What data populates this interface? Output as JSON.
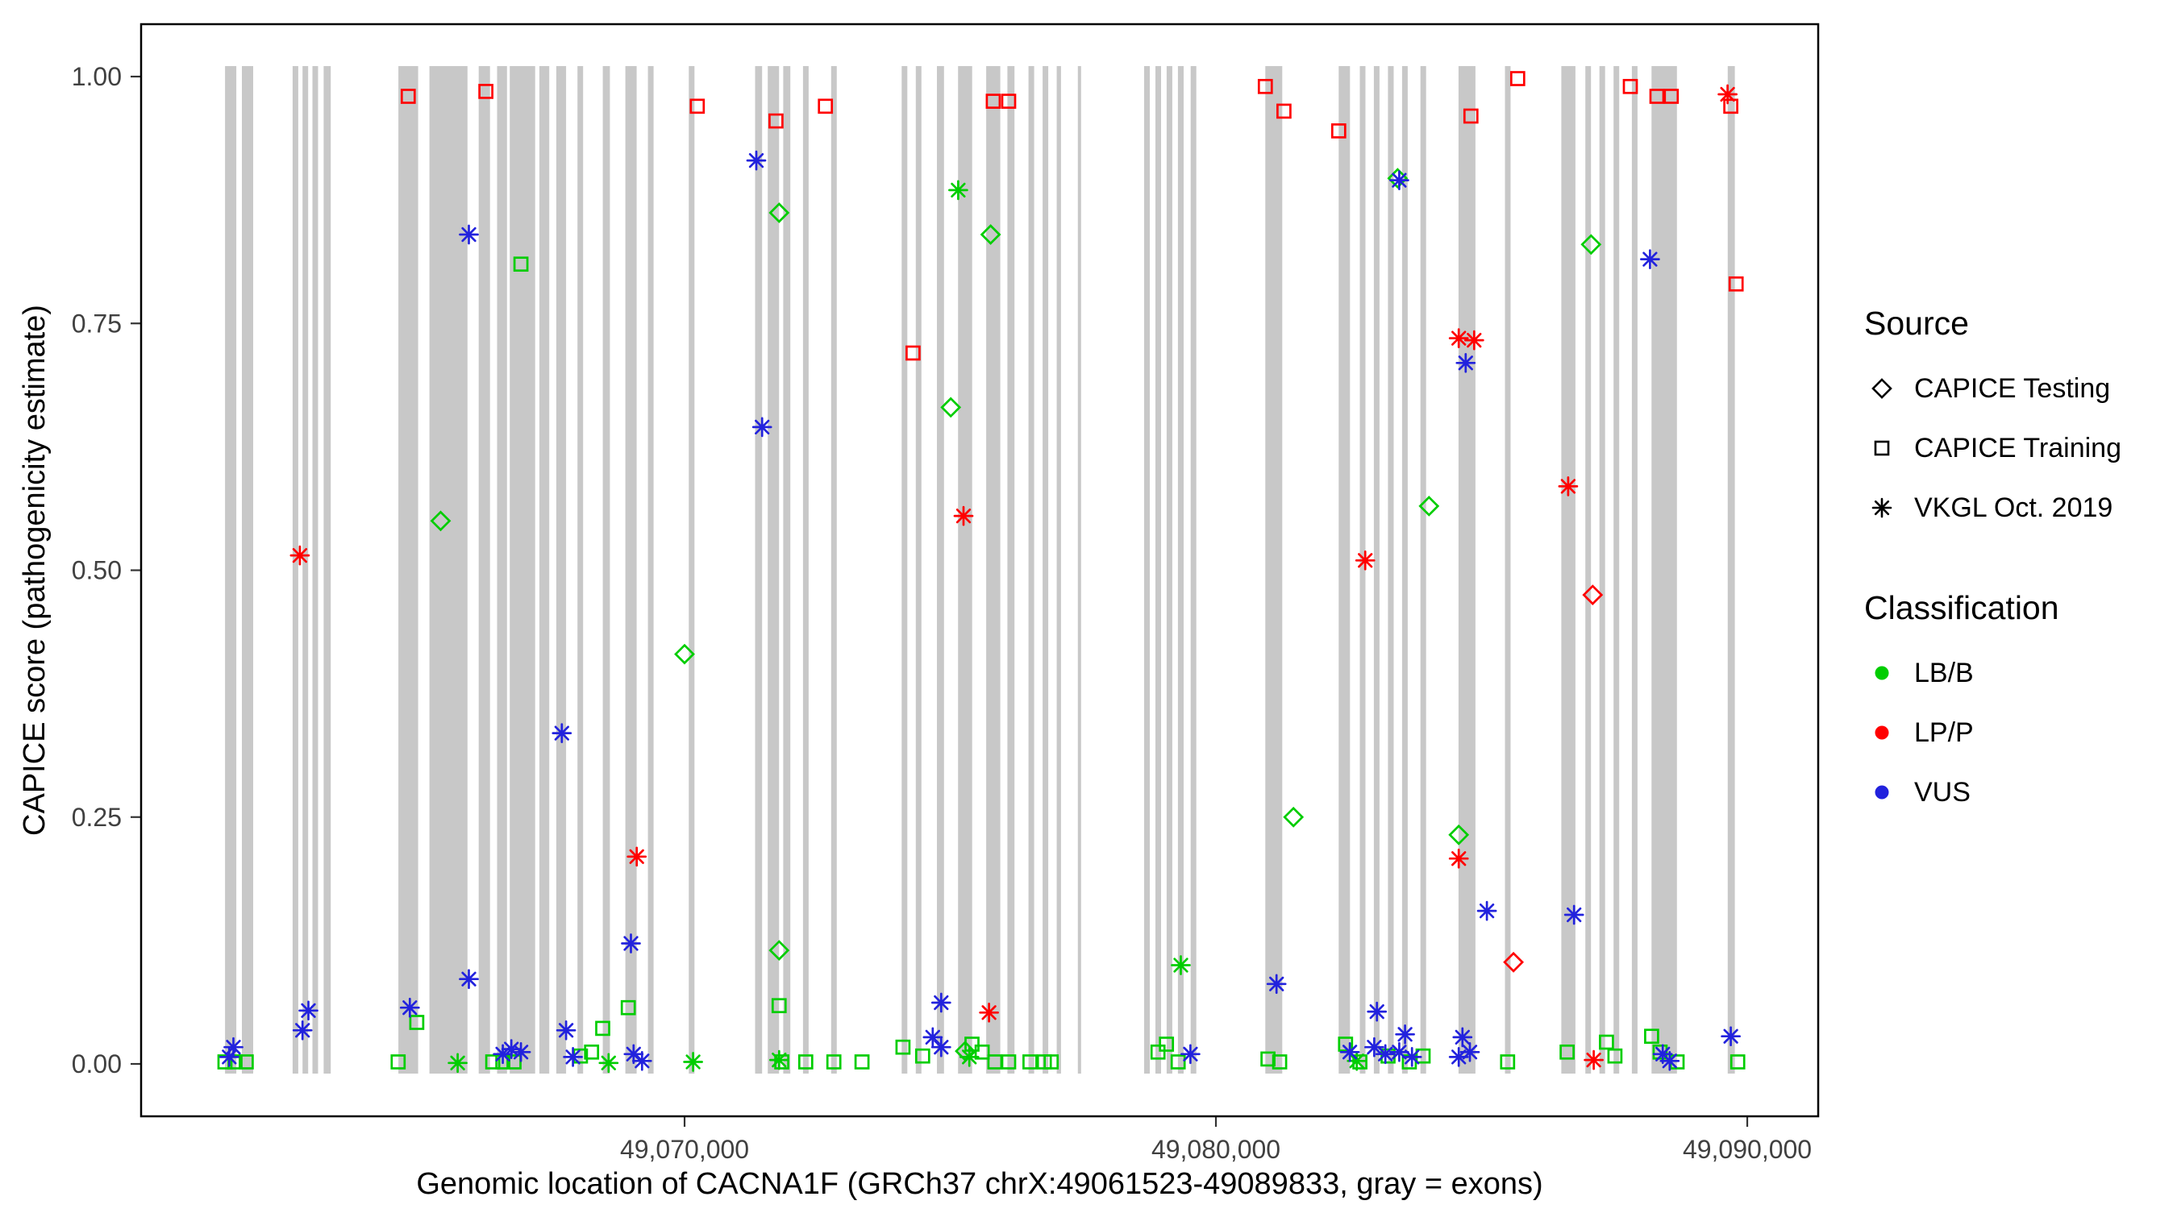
{
  "figure": {
    "x_axis": {
      "label": "Genomic location of CACNA1F (GRCh37 chrX:49061523-49089833, gray = exons)",
      "ticks": [
        "49,070,000",
        "49,080,000",
        "49,090,000"
      ],
      "tick_values": [
        49070000,
        49080000,
        49090000
      ]
    },
    "y_axis": {
      "label": "CAPICE score (pathogenicity estimate)",
      "ticks": [
        "0.00",
        "0.25",
        "0.50",
        "0.75",
        "1.00"
      ],
      "tick_values": [
        0,
        0.25,
        0.5,
        0.75,
        1
      ]
    },
    "legend": {
      "source": {
        "title": "Source",
        "items": [
          {
            "shape": "diamond",
            "label": "CAPICE Testing"
          },
          {
            "shape": "square",
            "label": "CAPICE Training"
          },
          {
            "shape": "asterisk",
            "label": "VKGL Oct. 2019"
          }
        ]
      },
      "classification": {
        "title": "Classification",
        "items": [
          {
            "color": "#00CD00",
            "label": "LB/B"
          },
          {
            "color": "#FF0000",
            "label": "LP/P"
          },
          {
            "color": "#2222DD",
            "label": "VUS"
          }
        ]
      }
    }
  },
  "chart_data": {
    "type": "scatter",
    "title": "",
    "xlabel": "Genomic location of CACNA1F (GRCh37 chrX:49061523-49089833, gray = exons)",
    "ylabel": "CAPICE score (pathogenicity estimate)",
    "x_range": [
      49059772,
      49091335
    ],
    "y_range": [
      0,
      1
    ],
    "grid": false,
    "legend_position": "right",
    "colors": {
      "B": "#00CD00",
      "P": "#FF0000",
      "V": "#2222DD",
      "exon": "#C8C8C8"
    },
    "class_codes": {
      "B": "LB/B",
      "P": "LP/P",
      "V": "VUS"
    },
    "shape_codes": {
      "di": "CAPICE Testing (open diamond)",
      "sq": "CAPICE Training (open square)",
      "as": "VKGL Oct. 2019 (asterisk)"
    },
    "point_format": [
      "genomic_position",
      "capice_score",
      "shape",
      "classification"
    ],
    "exons": [
      [
        49061351,
        49061563
      ],
      [
        49061669,
        49061881
      ],
      [
        49062624,
        49062730
      ],
      [
        49062810,
        49062916
      ],
      [
        49062996,
        49063102
      ],
      [
        49063208,
        49063341
      ],
      [
        49064614,
        49064986
      ],
      [
        49065198,
        49065914
      ],
      [
        49066126,
        49066339
      ],
      [
        49066471,
        49066657
      ],
      [
        49066710,
        49067188
      ],
      [
        49067267,
        49067453
      ],
      [
        49067586,
        49067771
      ],
      [
        49067984,
        49068090
      ],
      [
        49068461,
        49068594
      ],
      [
        49068886,
        49069098
      ],
      [
        49069310,
        49069416
      ],
      [
        49070080,
        49070186
      ],
      [
        49071327,
        49071459
      ],
      [
        49071565,
        49071777
      ],
      [
        49071857,
        49071990
      ],
      [
        49072229,
        49072335
      ],
      [
        49072759,
        49072865
      ],
      [
        49074086,
        49074192
      ],
      [
        49074351,
        49074457
      ],
      [
        49074749,
        49074882
      ],
      [
        49075147,
        49075412
      ],
      [
        49075677,
        49075943
      ],
      [
        49076075,
        49076208
      ],
      [
        49076473,
        49076579
      ],
      [
        49076739,
        49076845
      ],
      [
        49077004,
        49077084
      ],
      [
        49077402,
        49077455
      ],
      [
        49078649,
        49078755
      ],
      [
        49078861,
        49078967
      ],
      [
        49079073,
        49079179
      ],
      [
        49079285,
        49079392
      ],
      [
        49079524,
        49079630
      ],
      [
        49080930,
        49081249
      ],
      [
        49082310,
        49082522
      ],
      [
        49082708,
        49082814
      ],
      [
        49082973,
        49083079
      ],
      [
        49083238,
        49083345
      ],
      [
        49083504,
        49083610
      ],
      [
        49083849,
        49083955
      ],
      [
        49084565,
        49084883
      ],
      [
        49085440,
        49085546
      ],
      [
        49086501,
        49086767
      ],
      [
        49086952,
        49087058
      ],
      [
        49087218,
        49087324
      ],
      [
        49087483,
        49087589
      ],
      [
        49087828,
        49087934
      ],
      [
        49088199,
        49088677
      ],
      [
        49089632,
        49089765
      ]
    ],
    "points": [
      [
        49064800,
        0.98,
        "sq",
        "P"
      ],
      [
        49066260,
        0.985,
        "sq",
        "P"
      ],
      [
        49070240,
        0.97,
        "sq",
        "P"
      ],
      [
        49071720,
        0.955,
        "sq",
        "P"
      ],
      [
        49072650,
        0.97,
        "sq",
        "P"
      ],
      [
        49074300,
        0.72,
        "sq",
        "P"
      ],
      [
        49075810,
        0.975,
        "sq",
        "P"
      ],
      [
        49076100,
        0.975,
        "sq",
        "P"
      ],
      [
        49080930,
        0.99,
        "sq",
        "P"
      ],
      [
        49081280,
        0.965,
        "sq",
        "P"
      ],
      [
        49082310,
        0.945,
        "sq",
        "P"
      ],
      [
        49084800,
        0.96,
        "sq",
        "P"
      ],
      [
        49085680,
        0.998,
        "sq",
        "P"
      ],
      [
        49087800,
        0.99,
        "sq",
        "P"
      ],
      [
        49088300,
        0.98,
        "sq",
        "P"
      ],
      [
        49088570,
        0.98,
        "sq",
        "P"
      ],
      [
        49089690,
        0.97,
        "sq",
        "P"
      ],
      [
        49089790,
        0.79,
        "sq",
        "P"
      ],
      [
        49087090,
        0.475,
        "di",
        "P"
      ],
      [
        49085600,
        0.103,
        "di",
        "P"
      ],
      [
        49062760,
        0.515,
        "as",
        "P"
      ],
      [
        49069100,
        0.21,
        "as",
        "P"
      ],
      [
        49075250,
        0.555,
        "as",
        "P"
      ],
      [
        49075730,
        0.052,
        "as",
        "P"
      ],
      [
        49082810,
        0.51,
        "as",
        "P"
      ],
      [
        49084570,
        0.735,
        "as",
        "P"
      ],
      [
        49084860,
        0.733,
        "as",
        "P"
      ],
      [
        49084570,
        0.208,
        "as",
        "P"
      ],
      [
        49086630,
        0.585,
        "as",
        "P"
      ],
      [
        49089630,
        0.982,
        "as",
        "P"
      ],
      [
        49087110,
        0.004,
        "as",
        "P"
      ],
      [
        49065410,
        0.55,
        "di",
        "B"
      ],
      [
        49070000,
        0.415,
        "di",
        "B"
      ],
      [
        49071780,
        0.862,
        "di",
        "B"
      ],
      [
        49071780,
        0.115,
        "di",
        "B"
      ],
      [
        49075010,
        0.665,
        "di",
        "B"
      ],
      [
        49075760,
        0.84,
        "di",
        "B"
      ],
      [
        49075280,
        0.013,
        "di",
        "B"
      ],
      [
        49081460,
        0.25,
        "di",
        "B"
      ],
      [
        49083420,
        0.897,
        "di",
        "B"
      ],
      [
        49084010,
        0.565,
        "di",
        "B"
      ],
      [
        49084570,
        0.232,
        "di",
        "B"
      ],
      [
        49087060,
        0.83,
        "di",
        "B"
      ],
      [
        49066920,
        0.81,
        "sq",
        "B"
      ],
      [
        49064960,
        0.042,
        "sq",
        "B"
      ],
      [
        49068460,
        0.036,
        "sq",
        "B"
      ],
      [
        49068940,
        0.057,
        "sq",
        "B"
      ],
      [
        49071780,
        0.059,
        "sq",
        "B"
      ],
      [
        49074110,
        0.017,
        "sq",
        "B"
      ],
      [
        49061350,
        0.002,
        "sq",
        "B"
      ],
      [
        49061540,
        0.002,
        "sq",
        "B"
      ],
      [
        49061750,
        0.002,
        "sq",
        "B"
      ],
      [
        49064610,
        0.002,
        "sq",
        "B"
      ],
      [
        49066390,
        0.002,
        "sq",
        "B"
      ],
      [
        49066580,
        0.002,
        "sq",
        "B"
      ],
      [
        49066790,
        0.002,
        "sq",
        "B"
      ],
      [
        49068040,
        0.008,
        "sq",
        "B"
      ],
      [
        49068250,
        0.012,
        "sq",
        "B"
      ],
      [
        49071830,
        0.002,
        "sq",
        "B"
      ],
      [
        49072280,
        0.002,
        "sq",
        "B"
      ],
      [
        49072810,
        0.002,
        "sq",
        "B"
      ],
      [
        49073340,
        0.002,
        "sq",
        "B"
      ],
      [
        49074480,
        0.008,
        "sq",
        "B"
      ],
      [
        49075410,
        0.02,
        "sq",
        "B"
      ],
      [
        49075600,
        0.012,
        "sq",
        "B"
      ],
      [
        49075840,
        0.002,
        "sq",
        "B"
      ],
      [
        49076100,
        0.002,
        "sq",
        "B"
      ],
      [
        49076500,
        0.002,
        "sq",
        "B"
      ],
      [
        49076770,
        0.002,
        "sq",
        "B"
      ],
      [
        49076900,
        0.002,
        "sq",
        "B"
      ],
      [
        49078910,
        0.012,
        "sq",
        "B"
      ],
      [
        49079070,
        0.02,
        "sq",
        "B"
      ],
      [
        49079290,
        0.002,
        "sq",
        "B"
      ],
      [
        49080980,
        0.005,
        "sq",
        "B"
      ],
      [
        49081200,
        0.002,
        "sq",
        "B"
      ],
      [
        49082440,
        0.02,
        "sq",
        "B"
      ],
      [
        49082710,
        0.002,
        "sq",
        "B"
      ],
      [
        49083240,
        0.008,
        "sq",
        "B"
      ],
      [
        49083640,
        0.002,
        "sq",
        "B"
      ],
      [
        49083900,
        0.008,
        "sq",
        "B"
      ],
      [
        49085490,
        0.002,
        "sq",
        "B"
      ],
      [
        49086610,
        0.012,
        "sq",
        "B"
      ],
      [
        49087350,
        0.022,
        "sq",
        "B"
      ],
      [
        49087510,
        0.008,
        "sq",
        "B"
      ],
      [
        49088200,
        0.028,
        "sq",
        "B"
      ],
      [
        49088360,
        0.012,
        "sq",
        "B"
      ],
      [
        49088680,
        0.002,
        "sq",
        "B"
      ],
      [
        49089820,
        0.002,
        "sq",
        "B"
      ],
      [
        49075150,
        0.885,
        "as",
        "B"
      ],
      [
        49079340,
        0.1,
        "as",
        "B"
      ],
      [
        49065730,
        0.001,
        "as",
        "B"
      ],
      [
        49068570,
        0.001,
        "as",
        "B"
      ],
      [
        49070160,
        0.002,
        "as",
        "B"
      ],
      [
        49075360,
        0.007,
        "as",
        "B"
      ],
      [
        49071780,
        0.004,
        "as",
        "B"
      ],
      [
        49082650,
        0.003,
        "as",
        "B"
      ],
      [
        49071350,
        0.915,
        "as",
        "V"
      ],
      [
        49065940,
        0.84,
        "as",
        "V"
      ],
      [
        49071460,
        0.645,
        "as",
        "V"
      ],
      [
        49067690,
        0.335,
        "as",
        "V"
      ],
      [
        49068990,
        0.122,
        "as",
        "V"
      ],
      [
        49065940,
        0.086,
        "as",
        "V"
      ],
      [
        49064830,
        0.057,
        "as",
        "V"
      ],
      [
        49062920,
        0.054,
        "as",
        "V"
      ],
      [
        49062810,
        0.034,
        "as",
        "V"
      ],
      [
        49061510,
        0.017,
        "as",
        "V"
      ],
      [
        49061430,
        0.007,
        "as",
        "V"
      ],
      [
        49067770,
        0.034,
        "as",
        "V"
      ],
      [
        49066740,
        0.015,
        "as",
        "V"
      ],
      [
        49066920,
        0.012,
        "as",
        "V"
      ],
      [
        49066580,
        0.01,
        "as",
        "V"
      ],
      [
        49067900,
        0.007,
        "as",
        "V"
      ],
      [
        49069040,
        0.01,
        "as",
        "V"
      ],
      [
        49069200,
        0.003,
        "as",
        "V"
      ],
      [
        49074830,
        0.062,
        "as",
        "V"
      ],
      [
        49074670,
        0.027,
        "as",
        "V"
      ],
      [
        49074830,
        0.017,
        "as",
        "V"
      ],
      [
        49081140,
        0.081,
        "as",
        "V"
      ],
      [
        49079520,
        0.01,
        "as",
        "V"
      ],
      [
        49083030,
        0.053,
        "as",
        "V"
      ],
      [
        49082520,
        0.012,
        "as",
        "V"
      ],
      [
        49082980,
        0.017,
        "as",
        "V"
      ],
      [
        49083190,
        0.01,
        "as",
        "V"
      ],
      [
        49083560,
        0.03,
        "as",
        "V"
      ],
      [
        49083450,
        0.012,
        "as",
        "V"
      ],
      [
        49083690,
        0.007,
        "as",
        "V"
      ],
      [
        49084640,
        0.027,
        "as",
        "V"
      ],
      [
        49084780,
        0.012,
        "as",
        "V"
      ],
      [
        49084570,
        0.007,
        "as",
        "V"
      ],
      [
        49083450,
        0.895,
        "as",
        "V"
      ],
      [
        49084700,
        0.71,
        "as",
        "V"
      ],
      [
        49085100,
        0.155,
        "as",
        "V"
      ],
      [
        49086740,
        0.151,
        "as",
        "V"
      ],
      [
        49088170,
        0.815,
        "as",
        "V"
      ],
      [
        49089690,
        0.028,
        "as",
        "V"
      ],
      [
        49088410,
        0.01,
        "as",
        "V"
      ],
      [
        49088540,
        0.003,
        "as",
        "V"
      ]
    ]
  }
}
